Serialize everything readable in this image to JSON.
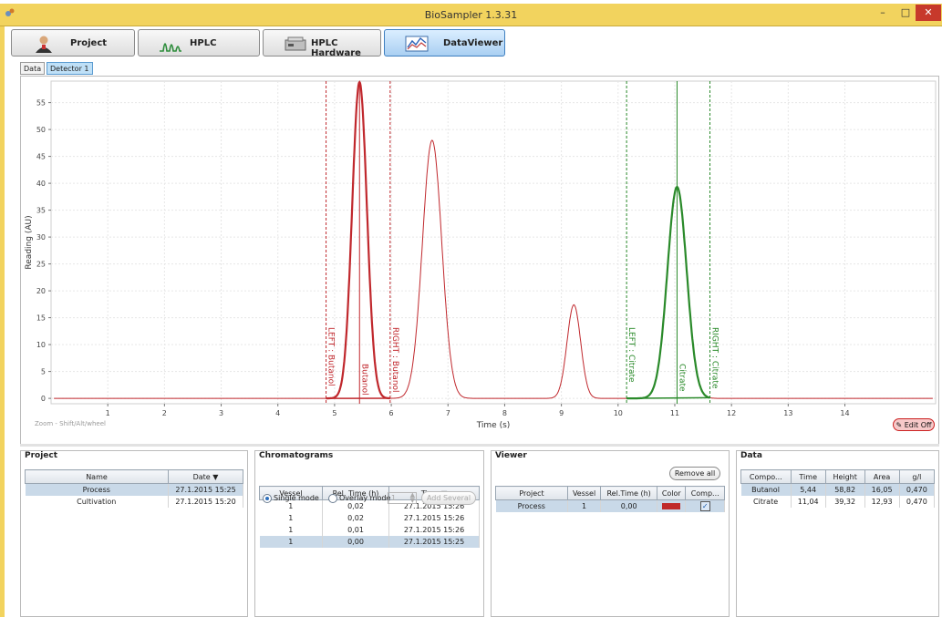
{
  "window": {
    "title": "BioSampler 1.3.31"
  },
  "main_tabs": [
    {
      "label": "Project",
      "icon": "user-icon"
    },
    {
      "label": "HPLC",
      "icon": "peaks-icon"
    },
    {
      "label": "HPLC Hardware",
      "icon": "hardware-icon"
    },
    {
      "label": "DataViewer",
      "icon": "chart-icon",
      "active": true
    }
  ],
  "sub_tabs": [
    {
      "label": "Data"
    },
    {
      "label": "Detector 1",
      "active": true
    }
  ],
  "chart_data": {
    "type": "line",
    "xlabel": "Time (s)",
    "ylabel": "Reading (AU)",
    "xlim": [
      0,
      15.6
    ],
    "ylim": [
      -1,
      59
    ],
    "x_ticks": [
      "1",
      "2",
      "3",
      "4",
      "5",
      "6",
      "7",
      "8",
      "9",
      "10",
      "11",
      "12",
      "13",
      "14"
    ],
    "y_ticks": [
      "0",
      "5",
      "10",
      "15",
      "20",
      "25",
      "30",
      "35",
      "40",
      "45",
      "50",
      "55"
    ],
    "grid": true,
    "series": [
      {
        "color": "#c0282d",
        "peaks": [
          {
            "x": 5.44,
            "y": 58.82,
            "w": 0.13
          },
          {
            "x": 6.72,
            "y": 48.0,
            "w": 0.17
          },
          {
            "x": 9.22,
            "y": 17.4,
            "w": 0.12
          },
          {
            "x": 11.04,
            "y": 39.32,
            "w": 0.17
          }
        ]
      }
    ],
    "integration_regions": [
      {
        "name": "Butanol",
        "color": "#c0282d",
        "left": 4.85,
        "right": 5.98,
        "peak": 5.44,
        "left_label": "LEFT : Butanol",
        "right_label": "RIGHT : Butanol"
      },
      {
        "name": "Citrate",
        "color": "#2a8a2a",
        "left": 10.15,
        "right": 11.62,
        "peak": 11.04,
        "left_label": "LEFT : Citrate",
        "right_label": "RIGHT : Citrate"
      }
    ],
    "zoom_hint": "Zoom - Shift/Alt/wheel",
    "edit_button": "Edit Off"
  },
  "project_panel": {
    "title": "Project",
    "columns": [
      "Name",
      "Date"
    ],
    "rows": [
      [
        "Process",
        "27.1.2015 15:25"
      ],
      [
        "Cultivation",
        "27.1.2015 15:20"
      ]
    ],
    "selected": 0
  },
  "chromatograms_panel": {
    "title": "Chromatograms",
    "single_mode": "Single mode",
    "overlay_mode": "Overlay mode",
    "spin_value": "1",
    "add_several": "Add Several",
    "columns": [
      "Vessel",
      "Rel. Time (h)",
      "Time"
    ],
    "rows": [
      [
        "1",
        "0,02",
        "27.1.2015 15:26"
      ],
      [
        "1",
        "0,02",
        "27.1.2015 15:26"
      ],
      [
        "1",
        "0,01",
        "27.1.2015 15:26"
      ],
      [
        "1",
        "0,00",
        "27.1.2015 15:25"
      ]
    ],
    "selected": 3
  },
  "viewer_panel": {
    "title": "Viewer",
    "remove_all": "Remove all",
    "columns": [
      "Project",
      "Vessel",
      "Rel.Time (h)",
      "Color",
      "Comp..."
    ],
    "rows": [
      [
        "Process",
        "1",
        "0,00"
      ]
    ],
    "swatch_color": "#c02a2a",
    "checked": true
  },
  "data_panel": {
    "title": "Data",
    "columns": [
      "Compo...",
      "Time",
      "Height",
      "Area",
      "g/l"
    ],
    "rows": [
      [
        "Butanol",
        "5,44",
        "58,82",
        "16,05",
        "0,470"
      ],
      [
        "Citrate",
        "11,04",
        "39,32",
        "12,93",
        "0,470"
      ]
    ],
    "selected": 0
  }
}
